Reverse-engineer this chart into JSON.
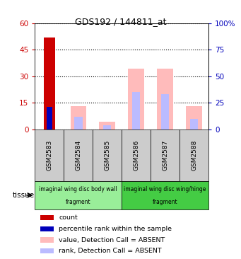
{
  "title": "GDS192 / 144811_at",
  "samples": [
    "GSM2583",
    "GSM2584",
    "GSM2585",
    "GSM2586",
    "GSM2587",
    "GSM2588"
  ],
  "count_values": [
    52,
    0,
    0,
    0,
    0,
    0
  ],
  "percentile_rank_values": [
    21,
    0,
    0,
    0,
    0,
    0
  ],
  "value_absent_pct": [
    0,
    22,
    7,
    57,
    57,
    22
  ],
  "rank_absent_pct": [
    0,
    12,
    4,
    35,
    33,
    10
  ],
  "ylim_left": [
    0,
    60
  ],
  "ylim_right": [
    0,
    100
  ],
  "yticks_left": [
    0,
    15,
    30,
    45,
    60
  ],
  "ytick_labels_left": [
    "0",
    "15",
    "30",
    "45",
    "60"
  ],
  "yticks_right": [
    0,
    25,
    50,
    75,
    100
  ],
  "ytick_labels_right": [
    "0",
    "25",
    "50",
    "75",
    "100%"
  ],
  "tissue_groups": [
    {
      "label_line1": "imaginal wing disc body wall",
      "label_line2": "fragment",
      "samples": [
        0,
        1,
        2
      ],
      "color": "#99ee99"
    },
    {
      "label_line1": "imaginal wing disc wing/hinge",
      "label_line2": "fragment",
      "samples": [
        3,
        4,
        5
      ],
      "color": "#44cc44"
    }
  ],
  "tissue_label": "tissue",
  "color_count": "#cc0000",
  "color_percentile": "#0000bb",
  "color_value_absent": "#ffbbbb",
  "color_rank_absent": "#bbbbff",
  "color_left_axis": "#cc0000",
  "color_right_axis": "#0000bb",
  "color_gsm_box": "#cccccc",
  "legend_items": [
    {
      "color": "#cc0000",
      "label": "count"
    },
    {
      "color": "#0000bb",
      "label": "percentile rank within the sample"
    },
    {
      "color": "#ffbbbb",
      "label": "value, Detection Call = ABSENT"
    },
    {
      "color": "#bbbbff",
      "label": "rank, Detection Call = ABSENT"
    }
  ]
}
